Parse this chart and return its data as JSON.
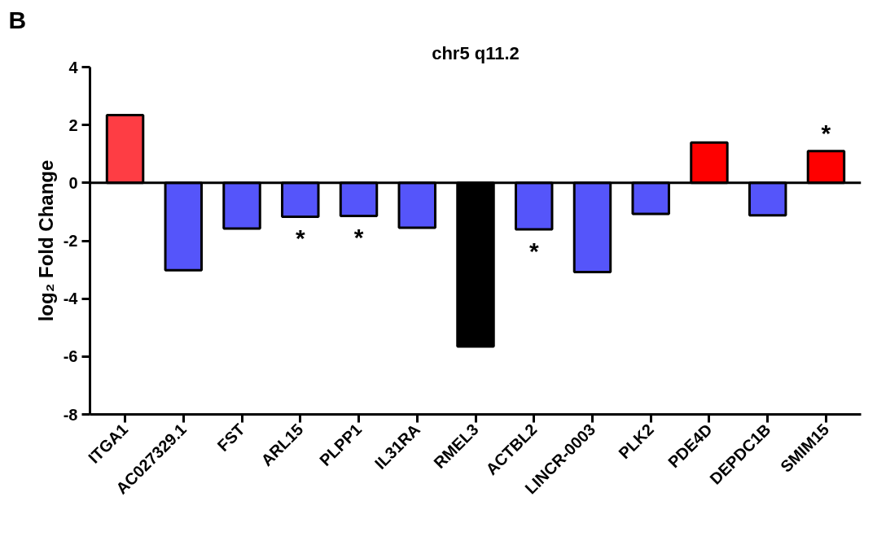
{
  "chart_data": {
    "type": "bar",
    "title": "chr5 q11.2",
    "ylabel": "log₂ Fold Change",
    "categories": [
      "ITGA1",
      "AC027329.1",
      "FST",
      "ARL15",
      "PLPP1",
      "IL31RA",
      "RMEL3",
      "ACTBL2",
      "LINCR-0003",
      "PLK2",
      "PDE4D",
      "DEPDC1B",
      "SMIM15"
    ],
    "values": [
      2.34,
      -3.02,
      -1.58,
      -1.17,
      -1.14,
      -1.55,
      -5.65,
      -1.61,
      -3.08,
      -1.07,
      1.39,
      -1.12,
      1.1
    ],
    "colors": [
      "#fe3d44",
      "#5555fa",
      "#5555fa",
      "#5555fa",
      "#5555fa",
      "#5555fa",
      "#000000",
      "#5555fa",
      "#5555fa",
      "#5555fa",
      "#fe0000",
      "#5555fa",
      "#fe0000"
    ],
    "ylim": [
      -8,
      4
    ],
    "yticks": [
      -8,
      -6,
      -4,
      -2,
      0,
      2,
      4
    ],
    "grid": false,
    "ref_lines": [
      {
        "axis": "y",
        "value": 0,
        "color": "#000000"
      }
    ],
    "annotations": [
      "B",
      {
        "text": "*",
        "x": "ARL15",
        "y": -1.17
      },
      {
        "text": "*",
        "x": "PLPP1",
        "y": -1.14
      },
      {
        "text": "*",
        "x": "ACTBL2",
        "y": -1.61
      },
      {
        "text": "*",
        "x": "SMIM15",
        "y": 1.1
      }
    ]
  }
}
